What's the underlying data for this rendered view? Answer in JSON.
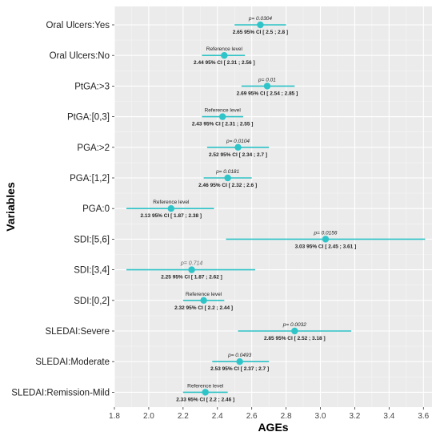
{
  "chart_data": {
    "type": "forest",
    "xlabel": "AGEs",
    "ylabel": "Variables",
    "xlim": [
      1.8,
      3.65
    ],
    "xticks": [
      "1.8",
      "2.0",
      "2.2",
      "2.4",
      "2.6",
      "2.8",
      "3.0",
      "3.2",
      "3.4",
      "3.6"
    ],
    "grid": true,
    "marker_color": "#2ec4c8",
    "rows": [
      {
        "label": "Oral Ulcers:Yes",
        "est": 2.65,
        "lo": 2.5,
        "hi": 2.8,
        "annot": "p= 0.0304",
        "annot_type": "p",
        "ci_text": "2.65 95% CI [ 2.5 ; 2.8 ]"
      },
      {
        "label": "Oral Ulcers:No",
        "est": 2.44,
        "lo": 2.31,
        "hi": 2.56,
        "annot": "Reference level",
        "annot_type": "ref",
        "ci_text": "2.44 95% CI [ 2.31 ; 2.56 ]"
      },
      {
        "label": "PtGA:>3",
        "est": 2.69,
        "lo": 2.54,
        "hi": 2.85,
        "annot": "p= 0.01",
        "annot_type": "p",
        "ci_text": "2.69 95% CI [ 2.54 ; 2.85 ]"
      },
      {
        "label": "PtGA:[0,3]",
        "est": 2.43,
        "lo": 2.31,
        "hi": 2.55,
        "annot": "Reference level",
        "annot_type": "ref",
        "ci_text": "2.43 95% CI [ 2.31 ; 2.55 ]"
      },
      {
        "label": "PGA:>2",
        "est": 2.52,
        "lo": 2.34,
        "hi": 2.7,
        "annot": "p= 0.0104",
        "annot_type": "p",
        "ci_text": "2.52 95% CI [ 2.34 ; 2.7 ]"
      },
      {
        "label": "PGA:[1,2]",
        "est": 2.46,
        "lo": 2.32,
        "hi": 2.6,
        "annot": "p= 0.0181",
        "annot_type": "p",
        "ci_text": "2.46 95% CI [ 2.32 ; 2.6 ]"
      },
      {
        "label": "PGA:0",
        "est": 2.13,
        "lo": 1.87,
        "hi": 2.38,
        "annot": "Reference level",
        "annot_type": "ref",
        "ci_text": "2.13 95% CI [ 1.87 ; 2.38 ]"
      },
      {
        "label": "SDI:[5,6]",
        "est": 3.03,
        "lo": 2.45,
        "hi": 3.61,
        "annot": "p= 0.0156",
        "annot_type": "p",
        "ci_text": "3.03 95% CI [ 2.45 ; 3.61 ]"
      },
      {
        "label": "SDI:[3,4]",
        "est": 2.25,
        "lo": 1.87,
        "hi": 2.62,
        "annot": "p= 0.714",
        "annot_type": "ns",
        "ci_text": "2.25 95% CI [ 1.87 ; 2.62 ]"
      },
      {
        "label": "SDI:[0,2]",
        "est": 2.32,
        "lo": 2.2,
        "hi": 2.44,
        "annot": "Reference level",
        "annot_type": "ref",
        "ci_text": "2.32 95% CI [ 2.2 ; 2.44 ]"
      },
      {
        "label": "SLEDAI:Severe",
        "est": 2.85,
        "lo": 2.52,
        "hi": 3.18,
        "annot": "p= 0.0032",
        "annot_type": "p",
        "ci_text": "2.85 95% CI [ 2.52 ; 3.18 ]"
      },
      {
        "label": "SLEDAI:Moderate",
        "est": 2.53,
        "lo": 2.37,
        "hi": 2.7,
        "annot": "p= 0.0493",
        "annot_type": "p",
        "ci_text": "2.53 95% CI [ 2.37 ; 2.7 ]"
      },
      {
        "label": "SLEDAI:Remission-Mild",
        "est": 2.33,
        "lo": 2.2,
        "hi": 2.46,
        "annot": "Reference level",
        "annot_type": "ref",
        "ci_text": "2.33 95% CI [ 2.2 ; 2.46 ]"
      }
    ]
  }
}
